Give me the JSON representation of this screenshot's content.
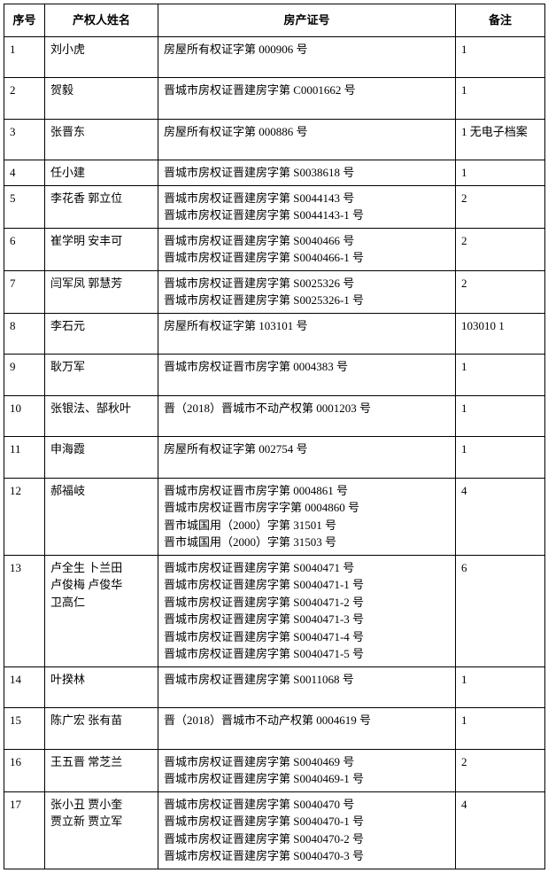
{
  "table": {
    "headers": {
      "seq": "序号",
      "name": "产权人姓名",
      "cert": "房产证号",
      "note": "备注"
    },
    "rows": [
      {
        "seq": "1",
        "name": "刘小虎",
        "cert": "房屋所有权证字第 000906 号",
        "note": "1",
        "tall": true
      },
      {
        "seq": "2",
        "name": "贺毅",
        "cert": "晋城市房权证晋建房字第 C0001662 号",
        "note": "1",
        "tall": true
      },
      {
        "seq": "3",
        "name": "张晋东",
        "cert": "房屋所有权证字第 000886 号",
        "note": "1 无电子档案",
        "tall": true
      },
      {
        "seq": "4",
        "name": "任小建",
        "cert": "晋城市房权证晋建房字第 S0038618 号",
        "note": "1"
      },
      {
        "seq": "5",
        "name": "李花香  郭立位",
        "cert": "晋城市房权证晋建房字第 S0044143 号\n晋城市房权证晋建房字第 S0044143-1 号",
        "note": "2"
      },
      {
        "seq": "6",
        "name": "崔学明  安丰可",
        "cert": "晋城市房权证晋建房字第 S0040466 号\n晋城市房权证晋建房字第 S0040466-1 号",
        "note": "2"
      },
      {
        "seq": "7",
        "name": "闫军凤  郭慧芳",
        "cert": "晋城市房权证晋建房字第 S0025326 号\n晋城市房权证晋建房字第 S0025326-1 号",
        "note": "2"
      },
      {
        "seq": "8",
        "name": "李石元",
        "cert": "房屋所有权证字第 103101 号",
        "note": "103010   1",
        "tall": true
      },
      {
        "seq": "9",
        "name": "耿万军",
        "cert": "晋城市房权证晋市房字第 0004383 号",
        "note": "1",
        "tall": true
      },
      {
        "seq": "10",
        "name": "张银法、郜秋叶",
        "cert": "晋（2018）晋城市不动产权第 0001203 号",
        "note": "1",
        "tall": true
      },
      {
        "seq": "11",
        "name": "申海霞",
        "cert": "房屋所有权证字第 002754 号",
        "note": "1",
        "tall": true
      },
      {
        "seq": "12",
        "name": "郝福岐",
        "cert": "晋城市房权证晋市房字第 0004861 号\n晋城市房权证晋市房字字第 0004860 号\n晋市城国用（2000）字第 31501 号\n晋市城国用（2000）字第 31503 号",
        "note": "4"
      },
      {
        "seq": "13",
        "name": "卢全生  卜兰田\n卢俊梅    卢俊华\n卫高仁",
        "cert": "晋城市房权证晋建房字第 S0040471 号\n晋城市房权证晋建房字第 S0040471-1 号\n晋城市房权证晋建房字第 S0040471-2 号\n晋城市房权证晋建房字第 S0040471-3 号\n晋城市房权证晋建房字第 S0040471-4 号\n晋城市房权证晋建房字第 S0040471-5 号",
        "note": "6"
      },
      {
        "seq": "14",
        "name": "叶揆林",
        "cert": "晋城市房权证晋建房字第 S0011068 号",
        "note": "1",
        "tall": true
      },
      {
        "seq": "15",
        "name": "陈广宏  张有苗",
        "cert": "晋（2018）晋城市不动产权第 0004619 号",
        "note": "1",
        "tall": true
      },
      {
        "seq": "16",
        "name": "王五晋  常芝兰",
        "cert": "晋城市房权证晋建房字第 S0040469 号\n晋城市房权证晋建房字第 S0040469-1 号",
        "note": "2"
      },
      {
        "seq": "17",
        "name": "张小丑  贾小奎\n贾立新  贾立军",
        "cert": "晋城市房权证晋建房字第 S0040470 号\n晋城市房权证晋建房字第 S0040470-1 号\n晋城市房权证晋建房字第 S0040470-2 号\n晋城市房权证晋建房字第 S0040470-3 号",
        "note": "4"
      }
    ]
  }
}
